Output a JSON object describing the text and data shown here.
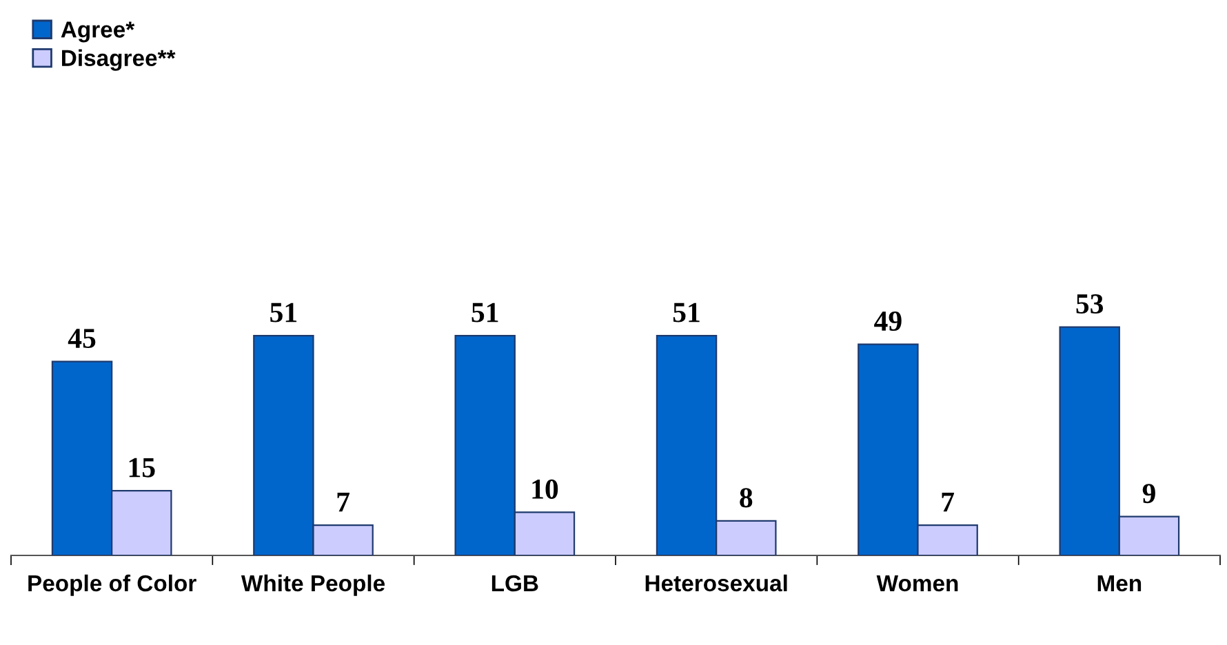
{
  "chart_data": {
    "type": "bar",
    "categories": [
      "People of Color",
      "White People",
      "LGB",
      "Heterosexual",
      "Women",
      "Men"
    ],
    "series": [
      {
        "name": "Agree*",
        "color": "#0066cc",
        "values": [
          45,
          51,
          51,
          51,
          49,
          53
        ]
      },
      {
        "name": "Disagree**",
        "color": "#ccccff",
        "values": [
          15,
          7,
          10,
          8,
          7,
          9
        ]
      }
    ],
    "data_labels": true,
    "legend": "top left",
    "grid": false,
    "tick_labels": "x"
  }
}
